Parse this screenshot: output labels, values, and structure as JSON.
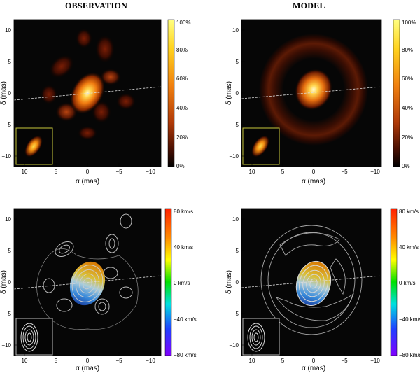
{
  "titles": {
    "left": "OBSERVATION",
    "right": "MODEL"
  },
  "axes": {
    "xlabel": "α (mas)",
    "ylabel": "δ (mas)",
    "xticks": [
      "10",
      "5",
      "0",
      "−5",
      "−10"
    ],
    "yticks": [
      "10",
      "5",
      "0",
      "−5",
      "−10"
    ]
  },
  "colorbars": {
    "intensity": {
      "ticks": [
        "100%",
        "80%",
        "60%",
        "40%",
        "20%",
        "0%"
      ]
    },
    "velocity": {
      "ticks": [
        "80 km/s",
        "40 km/s",
        "0 km/s",
        "−40 km/s",
        "−80 km/s"
      ]
    }
  },
  "colors": {
    "heat_top": "#ffff66",
    "heat_mid": "#ff8c00",
    "heat_low": "#8b1a00",
    "background": "#050505",
    "inset_frame_heat": "#c8c83c",
    "inset_frame_vel": "#bbbbbb"
  },
  "panels": {
    "obs_intensity": {
      "label": "OBSERVATION"
    },
    "model_intensity": {
      "label": "MODEL"
    },
    "obs_velocity": {},
    "model_velocity": {}
  }
}
